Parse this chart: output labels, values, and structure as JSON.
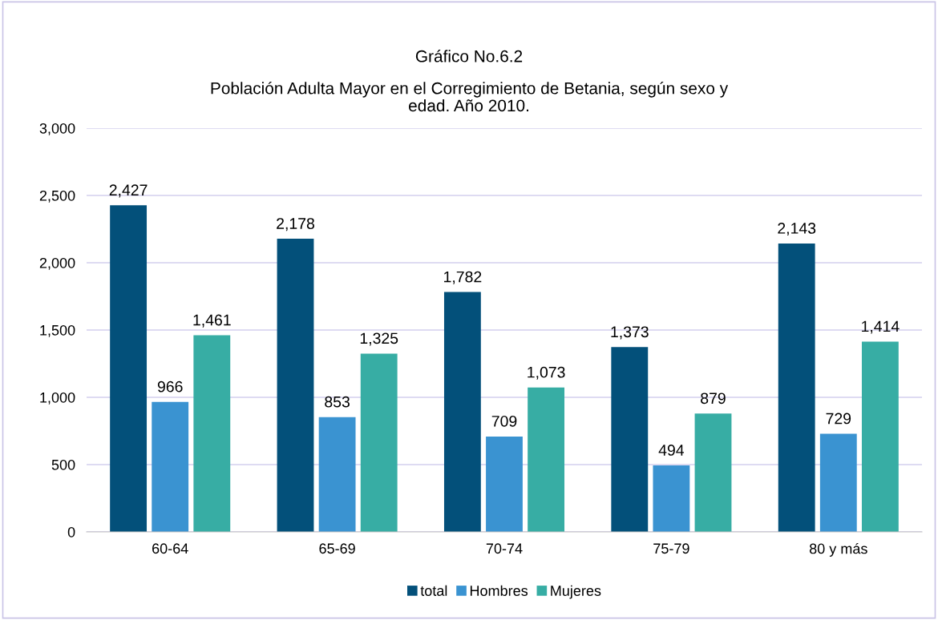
{
  "chart_data": {
    "type": "bar",
    "title": "Gráfico No.6.2",
    "subtitle": "Población Adulta Mayor en el Corregimiento de Betania, según sexo y\nedad. Año 2010.",
    "categories": [
      "60-64",
      "65-69",
      "70-74",
      "75-79",
      "80 y más"
    ],
    "series": [
      {
        "name": "total",
        "color": "#03507a",
        "values": [
          2427,
          2178,
          1782,
          1373,
          2143
        ],
        "value_labels": [
          "2,427",
          "2,178",
          "1,782",
          "1,373",
          "2,143"
        ]
      },
      {
        "name": "Hombres",
        "color": "#3a93d1",
        "values": [
          966,
          853,
          709,
          494,
          729
        ],
        "value_labels": [
          "966",
          "853",
          "709",
          "494",
          "729"
        ]
      },
      {
        "name": "Mujeres",
        "color": "#37ada4",
        "values": [
          1461,
          1325,
          1073,
          879,
          1414
        ],
        "value_labels": [
          "1,461",
          "1,325",
          "1,073",
          "879",
          "1,414"
        ]
      }
    ],
    "ylim": [
      0,
      3000
    ],
    "yticks": [
      {
        "value": 0,
        "label": "0"
      },
      {
        "value": 500,
        "label": "500"
      },
      {
        "value": 1000,
        "label": "1,000"
      },
      {
        "value": 1500,
        "label": "1,500"
      },
      {
        "value": 2000,
        "label": "2,000"
      },
      {
        "value": 2500,
        "label": "2,500"
      },
      {
        "value": 3000,
        "label": "3,000"
      }
    ],
    "grid": "y",
    "legend": "bottom"
  }
}
